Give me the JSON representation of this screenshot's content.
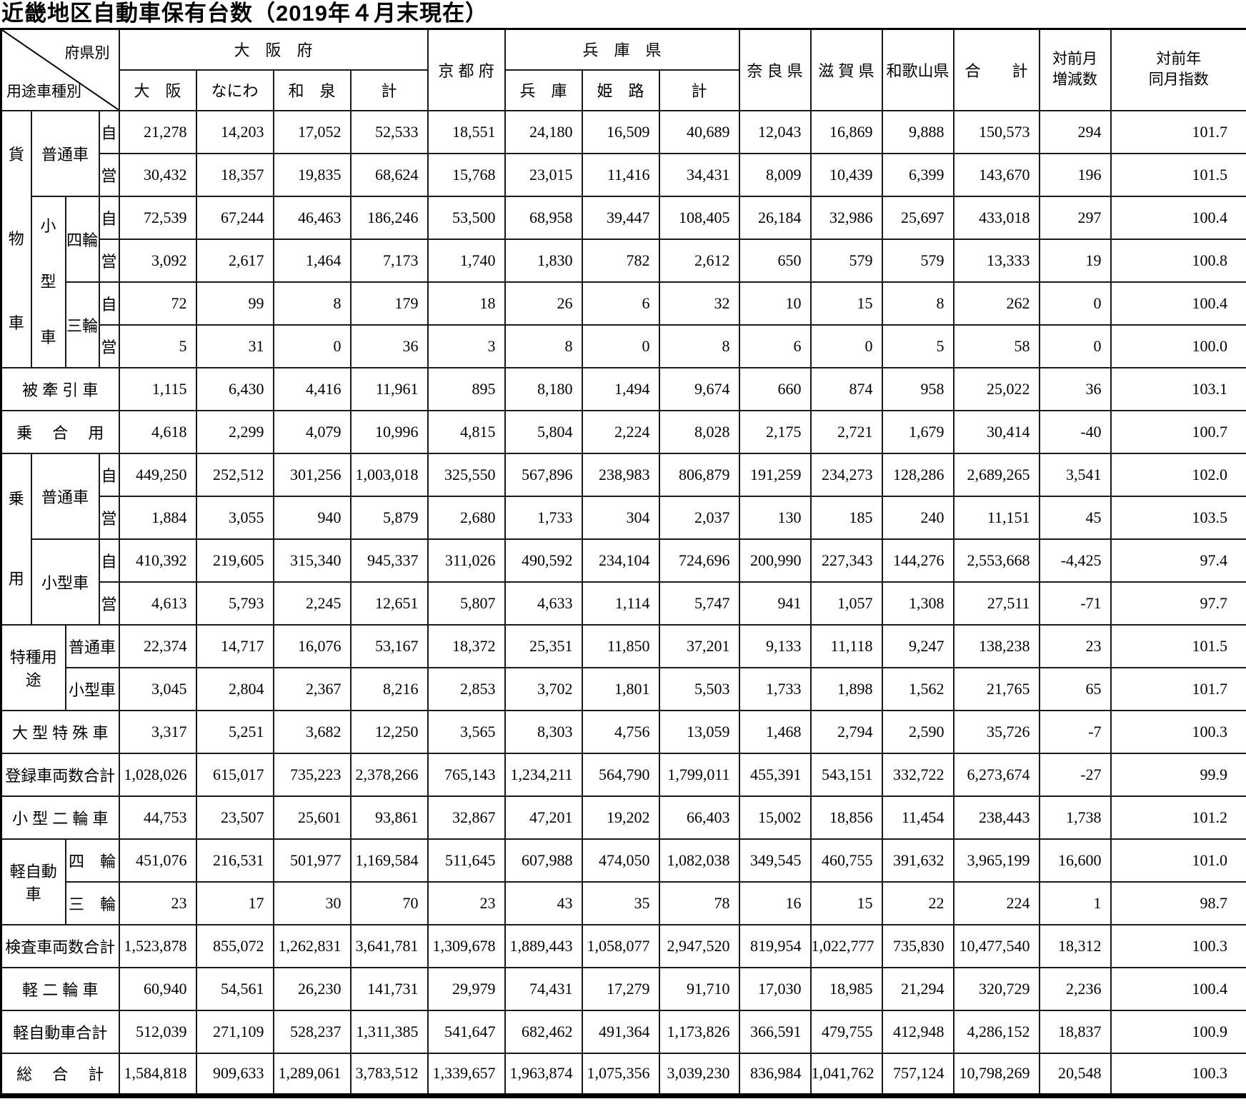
{
  "title": "近畿地区自動車保有台数（2019年４月末現在）",
  "header": {
    "corner_top": "府県別",
    "corner_bottom": "用途車種別",
    "osaka_fu": "大　阪　府",
    "kyoto": "京 都 府",
    "hyogo_ken": "兵　庫　県",
    "nara": "奈 良 県",
    "shiga": "滋 賀 県",
    "wakayama": "和歌山県",
    "total": "合　　計",
    "mom_change": "対前月\n増減数",
    "yoy_index": "対前年\n同月指数",
    "sub": {
      "osaka": "大　阪",
      "naniwa": "なにわ",
      "izumi": "和　泉",
      "osaka_kei": "計",
      "hyogo": "兵　庫",
      "himeji": "姫　路",
      "hyogo_kei": "計"
    }
  },
  "table": {
    "rows": [
      {
        "labels": [
          {
            "t": "貨\n物\n車",
            "rs": 6,
            "cs": 1,
            "cls": "pre v6"
          },
          {
            "t": "普通車",
            "rs": 2,
            "cs": 2
          },
          {
            "t": "自"
          }
        ],
        "values": [
          "21,278",
          "14,203",
          "17,052",
          "52,533",
          "18,551",
          "24,180",
          "16,509",
          "40,689",
          "12,043",
          "16,869",
          "9,888",
          "150,573",
          "294",
          "101.7"
        ]
      },
      {
        "labels": [
          {
            "t": "営"
          }
        ],
        "values": [
          "30,432",
          "18,357",
          "19,835",
          "68,624",
          "15,768",
          "23,015",
          "11,416",
          "34,431",
          "8,009",
          "10,439",
          "6,399",
          "143,670",
          "196",
          "101.5"
        ]
      },
      {
        "labels": [
          {
            "t": "小\n型\n車",
            "rs": 4,
            "cs": 1,
            "cls": "pre v4"
          },
          {
            "t": "四輪",
            "rs": 2
          },
          {
            "t": "自"
          }
        ],
        "values": [
          "72,539",
          "67,244",
          "46,463",
          "186,246",
          "53,500",
          "68,958",
          "39,447",
          "108,405",
          "26,184",
          "32,986",
          "25,697",
          "433,018",
          "297",
          "100.4"
        ]
      },
      {
        "labels": [
          {
            "t": "営"
          }
        ],
        "values": [
          "3,092",
          "2,617",
          "1,464",
          "7,173",
          "1,740",
          "1,830",
          "782",
          "2,612",
          "650",
          "579",
          "579",
          "13,333",
          "19",
          "100.8"
        ]
      },
      {
        "labels": [
          {
            "t": "三輪",
            "rs": 2
          },
          {
            "t": "自"
          }
        ],
        "values": [
          "72",
          "99",
          "8",
          "179",
          "18",
          "26",
          "6",
          "32",
          "10",
          "15",
          "8",
          "262",
          "0",
          "100.4"
        ]
      },
      {
        "labels": [
          {
            "t": "営"
          }
        ],
        "values": [
          "5",
          "31",
          "0",
          "36",
          "3",
          "8",
          "0",
          "8",
          "6",
          "0",
          "5",
          "58",
          "0",
          "100.0"
        ]
      },
      {
        "labels": [
          {
            "t": "被 牽 引 車",
            "cs": 4
          }
        ],
        "values": [
          "1,115",
          "6,430",
          "4,416",
          "11,961",
          "895",
          "8,180",
          "1,494",
          "9,674",
          "660",
          "874",
          "958",
          "25,022",
          "36",
          "103.1"
        ]
      },
      {
        "labels": [
          {
            "t": "乗　 合 　用",
            "cs": 4
          }
        ],
        "values": [
          "4,618",
          "2,299",
          "4,079",
          "10,996",
          "4,815",
          "5,804",
          "2,224",
          "8,028",
          "2,175",
          "2,721",
          "1,679",
          "30,414",
          "-40",
          "100.7"
        ]
      },
      {
        "labels": [
          {
            "t": "乗\n用",
            "rs": 4,
            "cs": 1,
            "cls": "pre v2"
          },
          {
            "t": "普通車",
            "rs": 2,
            "cs": 2
          },
          {
            "t": "自"
          }
        ],
        "values": [
          "449,250",
          "252,512",
          "301,256",
          "1,003,018",
          "325,550",
          "567,896",
          "238,983",
          "806,879",
          "191,259",
          "234,273",
          "128,286",
          "2,689,265",
          "3,541",
          "102.0"
        ]
      },
      {
        "labels": [
          {
            "t": "営"
          }
        ],
        "values": [
          "1,884",
          "3,055",
          "940",
          "5,879",
          "2,680",
          "1,733",
          "304",
          "2,037",
          "130",
          "185",
          "240",
          "11,151",
          "45",
          "103.5"
        ]
      },
      {
        "labels": [
          {
            "t": "小型車",
            "rs": 2,
            "cs": 2
          },
          {
            "t": "自"
          }
        ],
        "values": [
          "410,392",
          "219,605",
          "315,340",
          "945,337",
          "311,026",
          "490,592",
          "234,104",
          "724,696",
          "200,990",
          "227,343",
          "144,276",
          "2,553,668",
          "-4,425",
          "97.4"
        ]
      },
      {
        "labels": [
          {
            "t": "営"
          }
        ],
        "values": [
          "4,613",
          "5,793",
          "2,245",
          "12,651",
          "5,807",
          "4,633",
          "1,114",
          "5,747",
          "941",
          "1,057",
          "1,308",
          "27,511",
          "-71",
          "97.7"
        ]
      },
      {
        "labels": [
          {
            "t": "特種用途",
            "rs": 2,
            "cs": 2
          },
          {
            "t": "普通車",
            "cs": 2
          }
        ],
        "values": [
          "22,374",
          "14,717",
          "16,076",
          "53,167",
          "18,372",
          "25,351",
          "11,850",
          "37,201",
          "9,133",
          "11,118",
          "9,247",
          "138,238",
          "23",
          "101.5"
        ]
      },
      {
        "labels": [
          {
            "t": "小型車",
            "cs": 2
          }
        ],
        "values": [
          "3,045",
          "2,804",
          "2,367",
          "8,216",
          "2,853",
          "3,702",
          "1,801",
          "5,503",
          "1,733",
          "1,898",
          "1,562",
          "21,765",
          "65",
          "101.7"
        ]
      },
      {
        "labels": [
          {
            "t": "大 型 特 殊 車",
            "cs": 4
          }
        ],
        "values": [
          "3,317",
          "5,251",
          "3,682",
          "12,250",
          "3,565",
          "8,303",
          "4,756",
          "13,059",
          "1,468",
          "2,794",
          "2,590",
          "35,726",
          "-7",
          "100.3"
        ]
      },
      {
        "labels": [
          {
            "t": "登録車両数合計",
            "cs": 4
          }
        ],
        "values": [
          "1,028,026",
          "615,017",
          "735,223",
          "2,378,266",
          "765,143",
          "1,234,211",
          "564,790",
          "1,799,011",
          "455,391",
          "543,151",
          "332,722",
          "6,273,674",
          "-27",
          "99.9"
        ]
      },
      {
        "labels": [
          {
            "t": "小 型 二 輪 車",
            "cs": 4
          }
        ],
        "values": [
          "44,753",
          "23,507",
          "25,601",
          "93,861",
          "32,867",
          "47,201",
          "19,202",
          "66,403",
          "15,002",
          "18,856",
          "11,454",
          "238,443",
          "1,738",
          "101.2"
        ]
      },
      {
        "labels": [
          {
            "t": "軽自動車",
            "rs": 2,
            "cs": 2
          },
          {
            "t": "四　輪",
            "cs": 2
          }
        ],
        "values": [
          "451,076",
          "216,531",
          "501,977",
          "1,169,584",
          "511,645",
          "607,988",
          "474,050",
          "1,082,038",
          "349,545",
          "460,755",
          "391,632",
          "3,965,199",
          "16,600",
          "101.0"
        ]
      },
      {
        "labels": [
          {
            "t": "三　輪",
            "cs": 2
          }
        ],
        "values": [
          "23",
          "17",
          "30",
          "70",
          "23",
          "43",
          "35",
          "78",
          "16",
          "15",
          "22",
          "224",
          "1",
          "98.7"
        ]
      },
      {
        "labels": [
          {
            "t": "検査車両数合計",
            "cs": 4
          }
        ],
        "values": [
          "1,523,878",
          "855,072",
          "1,262,831",
          "3,641,781",
          "1,309,678",
          "1,889,443",
          "1,058,077",
          "2,947,520",
          "819,954",
          "1,022,777",
          "735,830",
          "10,477,540",
          "18,312",
          "100.3"
        ]
      },
      {
        "labels": [
          {
            "t": "軽 二 輪 車",
            "cs": 4
          }
        ],
        "values": [
          "60,940",
          "54,561",
          "26,230",
          "141,731",
          "29,979",
          "74,431",
          "17,279",
          "91,710",
          "17,030",
          "18,985",
          "21,294",
          "320,729",
          "2,236",
          "100.4"
        ]
      },
      {
        "labels": [
          {
            "t": "軽自動車合計",
            "cs": 4
          }
        ],
        "values": [
          "512,039",
          "271,109",
          "528,237",
          "1,311,385",
          "541,647",
          "682,462",
          "491,364",
          "1,173,826",
          "366,591",
          "479,755",
          "412,948",
          "4,286,152",
          "18,837",
          "100.9"
        ]
      },
      {
        "labels": [
          {
            "t": "総　 合 　計",
            "cs": 4
          }
        ],
        "values": [
          "1,584,818",
          "909,633",
          "1,289,061",
          "3,783,512",
          "1,339,657",
          "1,963,874",
          "1,075,356",
          "3,039,230",
          "836,984",
          "1,041,762",
          "757,124",
          "10,798,269",
          "20,548",
          "100.3"
        ]
      }
    ]
  }
}
